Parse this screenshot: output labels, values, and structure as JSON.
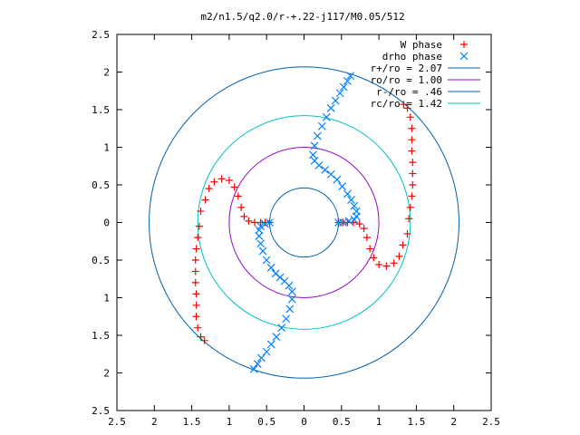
{
  "chart_data": {
    "type": "scatter",
    "title": "m2/n1.5/q2.0/r-+.22-j117/M0.05/512",
    "xlabel": "",
    "ylabel": "",
    "xlim": [
      -2.5,
      2.5
    ],
    "ylim": [
      -2.5,
      2.5
    ],
    "x_tick_values": [
      -2.5,
      -2,
      -1.5,
      -1,
      -0.5,
      0,
      0.5,
      1,
      1.5,
      2,
      2.5
    ],
    "x_tick_labels": [
      "2.5",
      "2",
      "1.5",
      "1",
      "0.5",
      "0",
      "0.5",
      "1",
      "1.5",
      "2",
      "2.5"
    ],
    "y_tick_values": [
      2.5,
      2,
      1.5,
      1,
      0.5,
      0,
      -0.5,
      -1,
      -1.5,
      -2,
      -2.5
    ],
    "y_tick_labels": [
      "2.5",
      "2",
      "1.5",
      "1",
      "0.5",
      "0",
      "0.5",
      "1",
      "1.5",
      "2",
      "2.5"
    ],
    "grid": false,
    "legend_position": "top-right",
    "circles": [
      {
        "name": "r+/ro = 2.07",
        "radius": 2.07,
        "color": "#0060ad"
      },
      {
        "name": "ro/ro = 1.00",
        "radius": 1.0,
        "color": "#9400d3"
      },
      {
        "name": "r-/ro = .46",
        "radius": 0.46,
        "color": "#0060ad"
      },
      {
        "name": "rc/ro = 1.42",
        "radius": 1.42,
        "color": "#00c0c0"
      }
    ],
    "series": [
      {
        "name": "W phase",
        "marker": "+",
        "color": "#ff0000",
        "points": [
          [
            1.33,
            1.57
          ],
          [
            1.38,
            1.52
          ],
          [
            1.42,
            1.4
          ],
          [
            1.44,
            1.25
          ],
          [
            1.44,
            1.1
          ],
          [
            1.44,
            0.95
          ],
          [
            1.45,
            0.8
          ],
          [
            1.45,
            0.65
          ],
          [
            1.45,
            0.5
          ],
          [
            1.44,
            0.35
          ],
          [
            1.42,
            0.2
          ],
          [
            1.4,
            0.05
          ],
          [
            1.38,
            -0.15
          ],
          [
            1.32,
            -0.3
          ],
          [
            1.27,
            -0.45
          ],
          [
            1.2,
            -0.54
          ],
          [
            1.1,
            -0.58
          ],
          [
            1.0,
            -0.56
          ],
          [
            0.93,
            -0.47
          ],
          [
            0.88,
            -0.35
          ],
          [
            0.84,
            -0.2
          ],
          [
            0.8,
            -0.08
          ],
          [
            0.74,
            -0.02
          ],
          [
            0.66,
            0.0
          ],
          [
            0.58,
            0.0
          ],
          [
            0.52,
            0.0
          ],
          [
            0.46,
            0.0
          ],
          [
            -1.33,
            -1.57
          ],
          [
            -1.38,
            -1.52
          ],
          [
            -1.42,
            -1.4
          ],
          [
            -1.44,
            -1.25
          ],
          [
            -1.44,
            -1.1
          ],
          [
            -1.44,
            -0.95
          ],
          [
            -1.45,
            -0.8
          ],
          [
            -1.45,
            -0.65
          ],
          [
            -1.45,
            -0.5
          ],
          [
            -1.44,
            -0.35
          ],
          [
            -1.42,
            -0.2
          ],
          [
            -1.4,
            -0.05
          ],
          [
            -1.38,
            0.15
          ],
          [
            -1.32,
            0.3
          ],
          [
            -1.27,
            0.45
          ],
          [
            -1.2,
            0.54
          ],
          [
            -1.1,
            0.58
          ],
          [
            -1.0,
            0.56
          ],
          [
            -0.93,
            0.47
          ],
          [
            -0.88,
            0.35
          ],
          [
            -0.84,
            0.2
          ],
          [
            -0.8,
            0.08
          ],
          [
            -0.74,
            0.02
          ],
          [
            -0.66,
            0.0
          ],
          [
            -0.58,
            0.0
          ],
          [
            -0.52,
            0.0
          ],
          [
            -0.46,
            0.0
          ]
        ]
      },
      {
        "name": "drho phase",
        "marker": "x",
        "color": "#0080ff",
        "points": [
          [
            0.62,
            1.95
          ],
          [
            0.58,
            1.88
          ],
          [
            0.53,
            1.8
          ],
          [
            0.48,
            1.72
          ],
          [
            0.42,
            1.62
          ],
          [
            0.36,
            1.52
          ],
          [
            0.3,
            1.4
          ],
          [
            0.24,
            1.28
          ],
          [
            0.18,
            1.15
          ],
          [
            0.14,
            1.02
          ],
          [
            0.12,
            0.9
          ],
          [
            0.14,
            0.82
          ],
          [
            0.2,
            0.76
          ],
          [
            0.28,
            0.7
          ],
          [
            0.36,
            0.64
          ],
          [
            0.44,
            0.57
          ],
          [
            0.51,
            0.48
          ],
          [
            0.58,
            0.38
          ],
          [
            0.63,
            0.3
          ],
          [
            0.67,
            0.22
          ],
          [
            0.7,
            0.15
          ],
          [
            0.7,
            0.08
          ],
          [
            0.67,
            0.04
          ],
          [
            0.6,
            0.02
          ],
          [
            0.52,
            0.0
          ],
          [
            0.46,
            0.0
          ],
          [
            -0.67,
            -1.95
          ],
          [
            -0.62,
            -1.88
          ],
          [
            -0.57,
            -1.8
          ],
          [
            -0.5,
            -1.72
          ],
          [
            -0.44,
            -1.62
          ],
          [
            -0.37,
            -1.52
          ],
          [
            -0.3,
            -1.4
          ],
          [
            -0.24,
            -1.28
          ],
          [
            -0.19,
            -1.15
          ],
          [
            -0.16,
            -1.02
          ],
          [
            -0.16,
            -0.92
          ],
          [
            -0.2,
            -0.84
          ],
          [
            -0.26,
            -0.78
          ],
          [
            -0.32,
            -0.73
          ],
          [
            -0.38,
            -0.68
          ],
          [
            -0.44,
            -0.6
          ],
          [
            -0.5,
            -0.5
          ],
          [
            -0.55,
            -0.38
          ],
          [
            -0.58,
            -0.28
          ],
          [
            -0.6,
            -0.18
          ],
          [
            -0.6,
            -0.1
          ],
          [
            -0.58,
            -0.05
          ],
          [
            -0.52,
            -0.02
          ],
          [
            -0.46,
            0.0
          ]
        ]
      }
    ]
  }
}
